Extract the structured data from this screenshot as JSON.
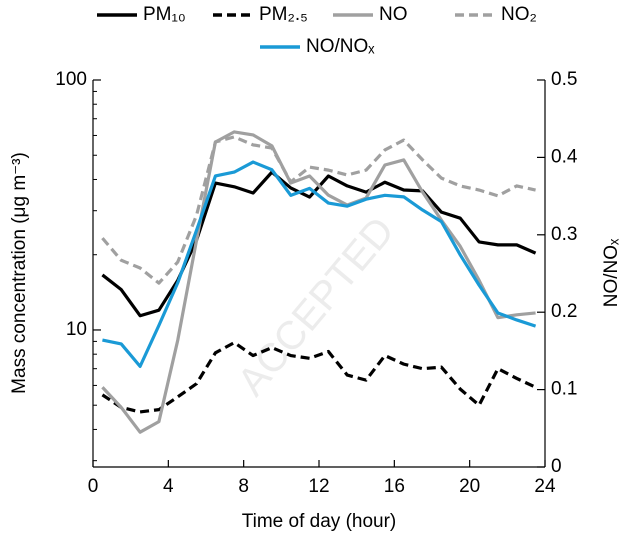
{
  "chart_data": {
    "type": "line",
    "x_label": "Time of day (hour)",
    "y_label": "Mass concentration (μg m⁻³)",
    "y2_label": "NO/NOₓ",
    "watermark": "ACCEPTED",
    "x": [
      0.5,
      1.5,
      2.5,
      3.5,
      4.5,
      5.5,
      6.5,
      7.5,
      8.5,
      9.5,
      10.5,
      11.5,
      12.5,
      13.5,
      14.5,
      15.5,
      16.5,
      17.5,
      18.5,
      19.5,
      20.5,
      21.5,
      22.5,
      23.5
    ],
    "xlim": [
      0,
      24
    ],
    "xticks": [
      0,
      4,
      8,
      12,
      16,
      20,
      24
    ],
    "ylog": true,
    "ylim": [
      2.83,
      100
    ],
    "yticks": [
      10,
      100
    ],
    "yminorticks": [
      3,
      4,
      5,
      6,
      7,
      8,
      9,
      20,
      30,
      40,
      50,
      60,
      70,
      80,
      90
    ],
    "y2lim": [
      0,
      0.5
    ],
    "y2ticks": [
      0,
      0.1,
      0.2,
      0.3,
      0.4,
      0.5
    ],
    "series": [
      {
        "name": "PM₁₀",
        "color": "#000000",
        "dashed": false,
        "values": [
          16.6,
          14.5,
          11.4,
          12.0,
          15.8,
          22.9,
          38.7,
          37.4,
          35.3,
          42.8,
          37.0,
          34.0,
          41.3,
          37.7,
          35.6,
          39.0,
          36.3,
          36.0,
          29.6,
          28.0,
          22.5,
          21.9,
          21.9,
          20.3
        ]
      },
      {
        "name": "PM₂.₅",
        "color": "#000000",
        "dashed": true,
        "values": [
          5.5,
          4.9,
          4.7,
          4.8,
          5.4,
          6.1,
          8.1,
          8.9,
          7.9,
          8.5,
          7.9,
          7.7,
          8.2,
          6.6,
          6.3,
          7.9,
          7.3,
          7.0,
          7.1,
          5.8,
          5.0,
          7.0,
          6.4,
          5.9
        ]
      },
      {
        "name": "NO",
        "color": "#a0a0a0",
        "dashed": false,
        "values": [
          5.9,
          4.9,
          3.9,
          4.3,
          9.1,
          22.9,
          56.5,
          62,
          60.3,
          54.5,
          38.7,
          41.3,
          34.6,
          31.6,
          33.7,
          45.7,
          47.9,
          35.6,
          27.5,
          21.6,
          15.8,
          11.2,
          11.5,
          11.7
        ]
      },
      {
        "name": "NO₂",
        "color": "#a0a0a0",
        "dashed": true,
        "values": [
          23.3,
          19.0,
          17.7,
          15.4,
          18.7,
          28.8,
          56.5,
          59.2,
          55,
          53.4,
          39.1,
          44.8,
          43.6,
          41.7,
          43.6,
          52.5,
          57.5,
          47.9,
          40.5,
          37.7,
          36.3,
          34.4,
          37.7,
          36.3
        ]
      },
      {
        "name": "NO/NOₓ",
        "color": "#1a9ad6",
        "dashed": false,
        "axis": "y2",
        "values": [
          0.164,
          0.159,
          0.13,
          0.183,
          0.238,
          0.306,
          0.376,
          0.381,
          0.394,
          0.384,
          0.351,
          0.36,
          0.341,
          0.337,
          0.346,
          0.351,
          0.349,
          0.332,
          0.317,
          0.274,
          0.235,
          0.199,
          0.19,
          0.182
        ]
      }
    ]
  }
}
